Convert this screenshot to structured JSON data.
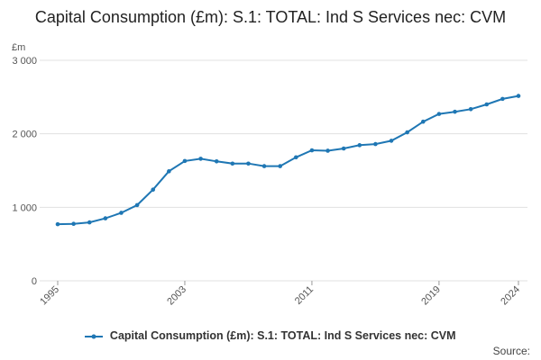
{
  "chart_data": {
    "type": "line",
    "title": "Capital Consumption (£m): S.1: TOTAL: Ind S Services nec: CVM",
    "ylabel": "£m",
    "xlabel": "",
    "ylim": [
      0,
      3000
    ],
    "xlim": [
      1995,
      2024
    ],
    "yticks": [
      0,
      1000,
      2000,
      3000
    ],
    "ytick_labels": [
      "0",
      "1 000",
      "2 000",
      "3 000"
    ],
    "xticks": [
      1995,
      2003,
      2011,
      2019,
      2024
    ],
    "xtick_labels": [
      "1995",
      "2003",
      "2011",
      "2019",
      "2024"
    ],
    "grid": true,
    "legend_position": "bottom",
    "series": [
      {
        "name": "Capital Consumption (£m): S.1: TOTAL: Ind S Services nec: CVM",
        "color": "#1f77b4",
        "x": [
          1995,
          1996,
          1997,
          1998,
          1999,
          2000,
          2001,
          2002,
          2003,
          2004,
          2005,
          2006,
          2007,
          2008,
          2009,
          2010,
          2011,
          2012,
          2013,
          2014,
          2015,
          2016,
          2017,
          2018,
          2019,
          2020,
          2021,
          2022,
          2023,
          2024
        ],
        "values": [
          770,
          775,
          795,
          850,
          925,
          1030,
          1240,
          1490,
          1630,
          1660,
          1625,
          1595,
          1595,
          1560,
          1560,
          1680,
          1775,
          1770,
          1800,
          1845,
          1860,
          1905,
          2020,
          2165,
          2270,
          2300,
          2335,
          2400,
          2475,
          2515
        ]
      }
    ]
  },
  "footer": {
    "source_label": "Source:"
  }
}
